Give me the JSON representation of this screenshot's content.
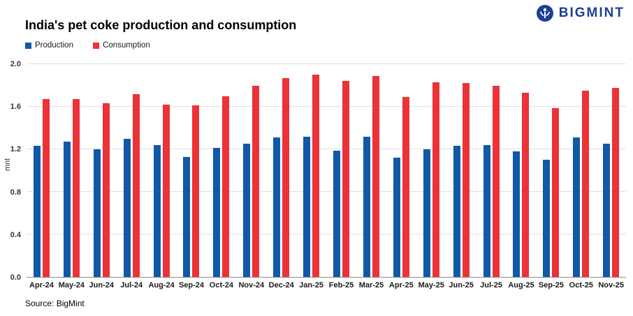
{
  "logo": {
    "text": "BIGMINT"
  },
  "source": "Source: BigMint",
  "brand_color": "#1d3f94",
  "chart_data": {
    "type": "bar",
    "title": "India's pet coke production and consumption",
    "ylabel": "mnt",
    "xlabel": "",
    "ylim": [
      0.0,
      2.0
    ],
    "yticks": [
      0.0,
      0.4,
      0.8,
      1.2,
      1.6,
      2.0
    ],
    "grid": true,
    "legend_position": "top-left",
    "categories": [
      "Apr-24",
      "May-24",
      "Jun-24",
      "Jul-24",
      "Aug-24",
      "Sep-24",
      "Oct-24",
      "Nov-24",
      "Dec-24",
      "Jan-25",
      "Feb-25",
      "Mar-25",
      "Apr-25",
      "May-25",
      "Jun-25",
      "Jul-25",
      "Aug-25",
      "Sep-25",
      "Oct-25",
      "Nov-25"
    ],
    "series": [
      {
        "name": "Production",
        "color": "#1159a8",
        "values": [
          1.23,
          1.27,
          1.2,
          1.3,
          1.24,
          1.13,
          1.21,
          1.25,
          1.31,
          1.32,
          1.19,
          1.32,
          1.12,
          1.2,
          1.23,
          1.24,
          1.18,
          1.1,
          1.31,
          1.25
        ]
      },
      {
        "name": "Consumption",
        "color": "#ed3237",
        "values": [
          1.67,
          1.67,
          1.63,
          1.72,
          1.62,
          1.61,
          1.7,
          1.8,
          1.87,
          1.9,
          1.84,
          1.89,
          1.69,
          1.83,
          1.82,
          1.8,
          1.73,
          1.59,
          1.75,
          1.78
        ]
      }
    ]
  }
}
